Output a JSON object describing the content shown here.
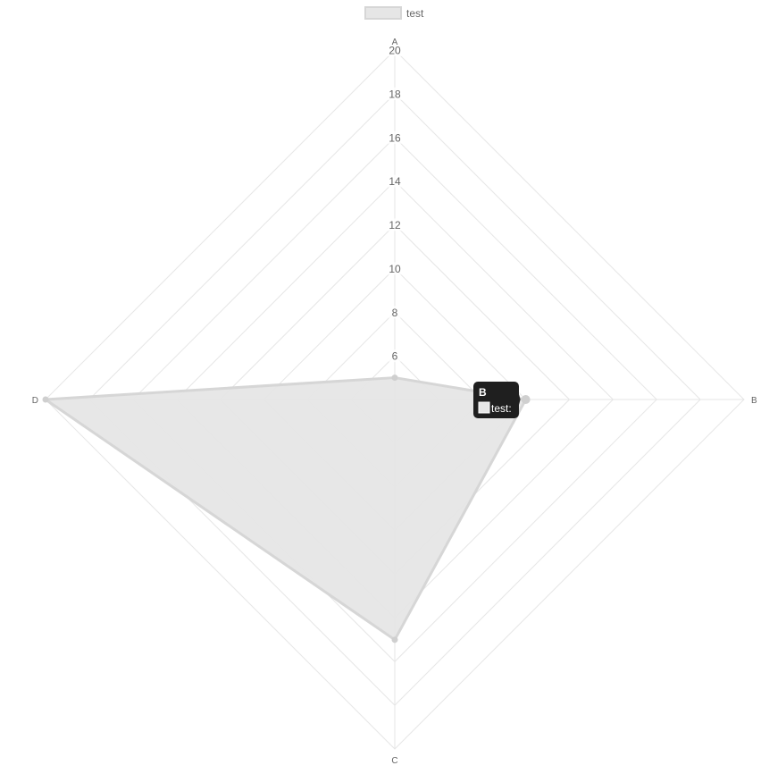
{
  "chart_data": {
    "type": "radar",
    "labels": [
      "A",
      "B",
      "C",
      "D"
    ],
    "series": [
      {
        "name": "test",
        "values": [
          5,
          10,
          15,
          20
        ],
        "fill_color": "#e6e6e6",
        "line_color": "#d6d6d6"
      }
    ],
    "scale": {
      "min": 4,
      "max": 20,
      "step": 2,
      "tick_labels": [
        "6",
        "8",
        "10",
        "12",
        "14",
        "16",
        "18",
        "20"
      ]
    },
    "grid": true,
    "grid_color": "#e6e6e6",
    "legend": {
      "position": "top",
      "items": [
        {
          "label": "test",
          "color": "#e6e6e6"
        }
      ]
    },
    "tooltip": {
      "title": "B",
      "body": "test:",
      "swatch_color": "#e6e6e6",
      "background": "#1f1f1f"
    }
  }
}
